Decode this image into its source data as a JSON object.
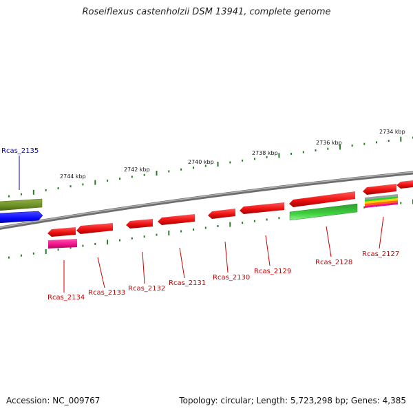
{
  "title": "Roseiflexus castenholzii DSM 13941, complete genome",
  "accession": "Accession: NC_009767",
  "summary": "Topology: circular; Length: 5,723,298 bp; Genes: 4,385",
  "colors": {
    "backbone": "#888888",
    "gene_red": "#ee1111",
    "gene_green": "#33cc33",
    "gene_olive": "#6b8e23",
    "gene_blue": "#0a0aff",
    "gene_pink": "#ee1188",
    "label_red": "#cc0000",
    "label_blue": "#0000cc",
    "tick_green": "#2a7a2a"
  },
  "scale_labels": [
    "2734 kbp",
    "2736 kbp",
    "2738 kbp",
    "2740 kbp",
    "2742 kbp",
    "2744 kbp"
  ],
  "gene_labels": [
    {
      "name": "Rcas_2135",
      "color": "blue"
    },
    {
      "name": "Rcas_2134",
      "color": "red"
    },
    {
      "name": "Rcas_2133",
      "color": "red"
    },
    {
      "name": "Rcas_2132",
      "color": "red"
    },
    {
      "name": "Rcas_2131",
      "color": "red"
    },
    {
      "name": "Rcas_2130",
      "color": "red"
    },
    {
      "name": "Rcas_2129",
      "color": "red"
    },
    {
      "name": "Rcas_2128",
      "color": "red"
    },
    {
      "name": "Rcas_2127",
      "color": "red"
    }
  ]
}
